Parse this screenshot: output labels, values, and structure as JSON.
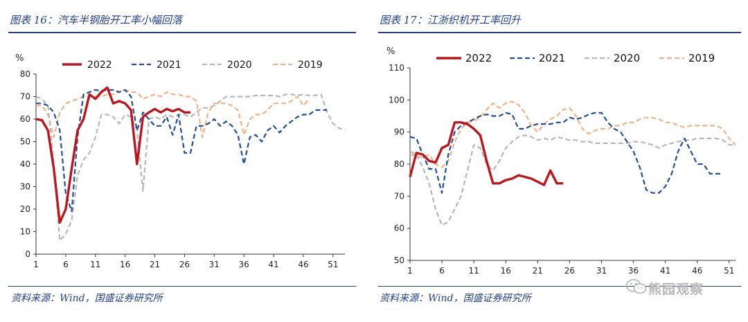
{
  "panels": [
    {
      "title": "图表 16：汽车半钢胎开工率小幅回落",
      "source": "资料来源：Wind，国盛证券研究所"
    },
    {
      "title": "图表 17：江浙织机开工率回升",
      "source": "资料来源：Wind，国盛证券研究所"
    }
  ],
  "watermark": {
    "text": "熊园观察",
    "icon": "wechat-icon"
  },
  "chart_data": [
    {
      "type": "line",
      "title": "",
      "ylabel": "%",
      "xlabel": "",
      "ylim": [
        0,
        80
      ],
      "yticks": [
        0,
        10,
        20,
        30,
        40,
        50,
        60,
        70,
        80
      ],
      "xlim": [
        1,
        53
      ],
      "xticks": [
        1,
        6,
        11,
        16,
        21,
        26,
        31,
        36,
        41,
        46,
        51
      ],
      "grid": false,
      "legend": "top",
      "series": [
        {
          "name": "2022",
          "color": "#c0141c",
          "dash": "solid",
          "x": [
            1,
            2,
            3,
            4,
            5,
            6,
            7,
            8,
            9,
            10,
            11,
            12,
            13,
            14,
            15,
            16,
            17,
            18,
            19,
            20,
            21,
            22,
            23,
            24,
            25,
            26,
            27
          ],
          "values": [
            60,
            59.5,
            55,
            38,
            14,
            20,
            38,
            55,
            60,
            71,
            69,
            72,
            74,
            67,
            68,
            67,
            64,
            40,
            61,
            63,
            64.5,
            63,
            64.5,
            63.5,
            64.5,
            63,
            63
          ]
        },
        {
          "name": "2021",
          "color": "#1f4e9a",
          "dash": "dash",
          "x": [
            1,
            2,
            3,
            4,
            5,
            6,
            7,
            8,
            9,
            10,
            11,
            12,
            13,
            14,
            15,
            16,
            17,
            18,
            19,
            20,
            21,
            22,
            23,
            24,
            25,
            26,
            27,
            28,
            29,
            30,
            31,
            32,
            33,
            34,
            35,
            36,
            37,
            38,
            39,
            40,
            41,
            42,
            43,
            44,
            45,
            46,
            47,
            48,
            49,
            50
          ],
          "values": [
            67,
            67,
            66,
            63,
            55,
            27,
            19,
            52,
            71,
            72,
            73,
            72.5,
            73,
            73,
            72,
            73,
            70,
            55,
            63,
            60,
            57,
            57,
            61,
            53,
            62,
            45,
            45,
            57,
            57,
            58,
            60,
            57,
            59,
            57,
            53,
            40,
            52,
            53,
            50,
            55,
            57,
            54,
            57,
            59,
            61,
            62,
            62,
            64,
            64,
            64
          ]
        },
        {
          "name": "2020",
          "color": "#b7b7b7",
          "dash": "dash",
          "x": [
            1,
            2,
            3,
            4,
            5,
            6,
            7,
            8,
            9,
            10,
            11,
            12,
            13,
            14,
            15,
            16,
            17,
            18,
            19,
            20,
            21,
            22,
            23,
            24,
            25,
            26,
            27,
            28,
            29,
            30,
            31,
            32,
            33,
            34,
            35,
            36,
            37,
            38,
            39,
            40,
            41,
            42,
            43,
            44,
            45,
            46,
            47,
            48,
            49,
            50,
            51,
            52,
            53
          ],
          "values": [
            70,
            69,
            66,
            40,
            6,
            9,
            15,
            35,
            42,
            45,
            52,
            62,
            62,
            61,
            58,
            62,
            61,
            55,
            28,
            60,
            61,
            60,
            62,
            61,
            62,
            62,
            61,
            63,
            65,
            65,
            66,
            68,
            70,
            70,
            70,
            70,
            70,
            70.5,
            70.5,
            70.5,
            70.5,
            70,
            71,
            71,
            70.5,
            71,
            70.5,
            70.5,
            71,
            63,
            58,
            56,
            55
          ]
        },
        {
          "name": "2019",
          "color": "#f4b183",
          "dash": "dash",
          "x": [
            1,
            2,
            3,
            4,
            5,
            6,
            7,
            8,
            9,
            10,
            11,
            12,
            13,
            14,
            15,
            16,
            17,
            18,
            19,
            20,
            21,
            22,
            23,
            24,
            25,
            26,
            27,
            28,
            29,
            30,
            31,
            32,
            33,
            34,
            35,
            36,
            37,
            38,
            39,
            40,
            41,
            42,
            43,
            44,
            45,
            46,
            47
          ],
          "values": [
            66,
            66,
            62,
            52,
            63,
            67,
            68,
            69,
            70,
            70,
            70,
            70,
            71,
            71,
            72,
            73,
            72,
            72,
            69,
            70,
            71,
            70,
            72,
            71,
            71,
            70,
            70,
            68,
            52,
            63,
            67,
            67,
            67,
            66,
            64,
            53,
            60,
            62,
            62,
            64,
            67,
            67,
            67,
            68,
            70,
            66,
            69
          ]
        }
      ]
    },
    {
      "type": "line",
      "title": "",
      "ylabel": "%",
      "xlabel": "",
      "ylim": [
        50,
        110
      ],
      "yticks": [
        50,
        60,
        70,
        80,
        90,
        100,
        110
      ],
      "xlim": [
        1,
        52
      ],
      "xticks": [
        1,
        6,
        11,
        16,
        21,
        26,
        31,
        36,
        41,
        46,
        51
      ],
      "grid": false,
      "legend": "top",
      "series": [
        {
          "name": "2022",
          "color": "#c0141c",
          "dash": "solid",
          "x": [
            1,
            2,
            3,
            4,
            5,
            6,
            7,
            8,
            9,
            10,
            11,
            12,
            13,
            14,
            15,
            16,
            17,
            18,
            19,
            20,
            21,
            22,
            23,
            24,
            25
          ],
          "values": [
            76,
            83.5,
            83,
            81,
            80.5,
            85,
            86,
            93,
            93,
            92.5,
            91,
            89,
            81,
            74,
            74,
            75,
            75.5,
            76.5,
            76,
            75.5,
            74.5,
            73.5,
            78,
            74,
            74
          ]
        },
        {
          "name": "2021",
          "color": "#1f4e9a",
          "dash": "dash",
          "x": [
            1,
            2,
            3,
            4,
            5,
            6,
            7,
            8,
            9,
            10,
            11,
            12,
            13,
            14,
            15,
            16,
            17,
            18,
            19,
            20,
            21,
            22,
            23,
            24,
            25,
            26,
            27,
            28,
            29,
            30,
            31,
            32,
            33,
            34,
            35,
            36,
            37,
            38,
            39,
            40,
            41,
            42,
            43,
            44,
            45,
            46,
            47,
            48,
            49,
            50
          ],
          "values": [
            88.5,
            88,
            83,
            78.5,
            78.5,
            71,
            83,
            90,
            92,
            93,
            94,
            95,
            95.5,
            95,
            95,
            96,
            95.5,
            91,
            91,
            92,
            92.5,
            92.5,
            92.5,
            93,
            93,
            94.5,
            94,
            94.5,
            95.5,
            96,
            96,
            93,
            91,
            90,
            87,
            84,
            79,
            72,
            71,
            71,
            73,
            77,
            84,
            88,
            84,
            80,
            80,
            77,
            77,
            77
          ]
        },
        {
          "name": "2020",
          "color": "#b7b7b7",
          "dash": "dash",
          "x": [
            1,
            2,
            3,
            4,
            5,
            6,
            7,
            8,
            9,
            10,
            11,
            12,
            13,
            14,
            15,
            16,
            17,
            18,
            19,
            20,
            21,
            22,
            23,
            24,
            25,
            26,
            27,
            28,
            29,
            30,
            31,
            32,
            33,
            34,
            35,
            36,
            37,
            38,
            39,
            40,
            41,
            42,
            43,
            44,
            45,
            46,
            47,
            48,
            49,
            50,
            51,
            52
          ],
          "values": [
            84,
            83,
            79,
            74,
            66,
            61,
            62,
            66,
            70,
            78,
            86,
            85,
            80,
            78,
            81,
            85,
            87,
            88.5,
            89,
            88.5,
            87.5,
            88,
            87.5,
            88.5,
            88,
            87.5,
            87.5,
            87,
            87,
            86.5,
            86.5,
            86.5,
            86.5,
            86.5,
            86.5,
            87,
            87,
            86.5,
            86,
            85,
            86,
            86.5,
            87,
            87.5,
            87.5,
            88,
            88,
            88,
            88,
            87.5,
            86,
            86
          ]
        },
        {
          "name": "2019",
          "color": "#f4b183",
          "dash": "dash",
          "x": [
            1,
            2,
            3,
            4,
            5,
            6,
            7,
            8,
            9,
            10,
            11,
            12,
            13,
            14,
            15,
            16,
            17,
            18,
            19,
            20,
            21,
            22,
            23,
            24,
            25,
            26,
            27,
            28,
            29,
            30,
            31,
            32,
            33,
            34,
            35,
            36,
            37,
            38,
            39,
            40,
            41,
            42,
            43,
            44,
            45,
            46,
            47,
            48,
            49,
            50,
            51,
            52
          ],
          "values": [
            83,
            82.5,
            82,
            83,
            80,
            79,
            81,
            87,
            91,
            93,
            93.5,
            94.5,
            97,
            99,
            97.5,
            99,
            99.5,
            98.5,
            96,
            92,
            90,
            92.5,
            94,
            95,
            97,
            97.5,
            95,
            91,
            89.5,
            90.5,
            91,
            91,
            92,
            92,
            93,
            93,
            94,
            94.5,
            94.5,
            94,
            93,
            93,
            92,
            91.5,
            92,
            92,
            92,
            92,
            92,
            91,
            88,
            86
          ]
        }
      ]
    }
  ]
}
